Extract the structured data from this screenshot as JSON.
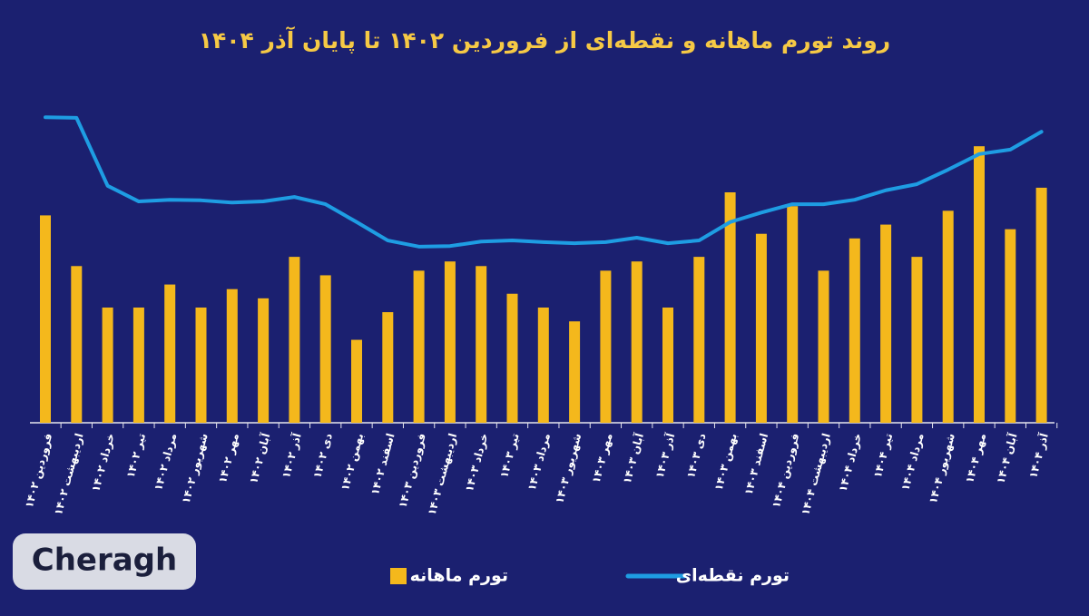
{
  "chart_data": {
    "type": "bar-line",
    "title": "روند تورم ماهانه و نقطه‌ای از فروردین ۱۴۰۲ تا پایان آذر ۱۴۰۴",
    "watermark": "Cheragh",
    "categories": [
      "فروردین ۱۴۰۲",
      "اردیبهشت ۱۴۰۲",
      "خرداد ۱۴۰۲",
      "تیر ۱۴۰۲",
      "مرداد ۱۴۰۲",
      "شهریور ۱۴۰۲",
      "مهر ۱۴۰۲",
      "آبان ۱۴۰۲",
      "آذر ۱۴۰۲",
      "دی ۱۴۰۲",
      "بهمن ۱۴۰۲",
      "اسفند ۱۴۰۲",
      "فروردین ۱۴۰۳",
      "اردیبهشت ۱۴۰۳",
      "خرداد ۱۴۰۳",
      "تیر ۱۴۰۳",
      "مرداد ۱۴۰۳",
      "شهریور ۱۴۰۳",
      "مهر ۱۴۰۳",
      "آبان ۱۴۰۳",
      "آذر ۱۴۰۳",
      "دی ۱۴۰۳",
      "بهمن ۱۴۰۳",
      "اسفند ۱۴۰۳",
      "فروردین ۱۴۰۴",
      "اردیبهشت ۱۴۰۴",
      "خرداد ۱۴۰۴",
      "تیر ۱۴۰۴",
      "مرداد ۱۴۰۴",
      "شهریور ۱۴۰۴",
      "مهر ۱۴۰۴",
      "آبان ۱۴۰۴",
      "آذر ۱۴۰۴"
    ],
    "series": [
      {
        "name": "تورم ماهانه",
        "type": "bar",
        "color": "#f4b81c",
        "values": [
          4.5,
          3.4,
          2.5,
          2.5,
          3.0,
          2.5,
          2.9,
          2.7,
          3.6,
          3.2,
          1.8,
          2.4,
          3.3,
          3.5,
          3.4,
          2.8,
          2.5,
          2.2,
          3.3,
          3.5,
          2.5,
          3.6,
          5.0,
          4.1,
          4.7,
          3.3,
          4.0,
          4.3,
          3.6,
          4.6,
          6.0,
          4.2,
          5.1
        ]
      },
      {
        "name": "تورم نقطه‌ای",
        "type": "line",
        "axis": "y2",
        "color": "#1e9de3",
        "values": [
          54.8,
          54.7,
          42.5,
          39.7,
          40.0,
          39.9,
          39.5,
          39.7,
          40.5,
          39.2,
          36.0,
          32.7,
          31.6,
          31.7,
          32.5,
          32.7,
          32.4,
          32.2,
          32.4,
          33.2,
          32.2,
          32.7,
          36.0,
          37.7,
          39.2,
          39.2,
          40.0,
          41.7,
          42.8,
          45.4,
          48.2,
          49.0,
          52.2
        ]
      }
    ],
    "ylim": [
      0,
      7.5
    ],
    "y2lim": [
      0,
      62
    ],
    "legend": "bottom"
  }
}
